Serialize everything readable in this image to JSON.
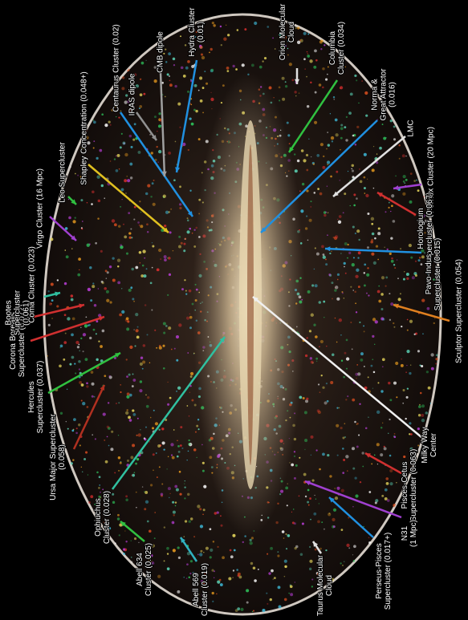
{
  "labels": [
    {
      "lines": [
        "Corona Borealis",
        "Supercluster (0.072)"
      ]
    },
    {
      "lines": [
        "Bootes",
        "Supercluster",
        "(0.061)"
      ]
    },
    {
      "lines": [
        "Hercules",
        "Supercluster (0.037)"
      ]
    },
    {
      "lines": [
        "Ursa Major Supercluster",
        "(0.058)"
      ]
    },
    {
      "lines": [
        "Coma Cluster (0.023)"
      ]
    },
    {
      "lines": [
        "Virgo Cluster (16 Mpc)"
      ]
    },
    {
      "lines": [
        "Leo Supercluster"
      ]
    },
    {
      "lines": [
        "Shapley Concentration (0.048+)"
      ]
    },
    {
      "lines": [
        "Centaurus Cluster (0.02)"
      ]
    },
    {
      "lines": [
        "IRAS dipole"
      ]
    },
    {
      "lines": [
        "CMB dipole"
      ]
    },
    {
      "lines": [
        "Hydra Cluster",
        "(0.01)"
      ]
    },
    {
      "lines": [
        "Orion Molecular",
        "Cloud"
      ]
    },
    {
      "lines": [
        "Columbia",
        "Cluster (0.034)"
      ]
    },
    {
      "lines": [
        "Norma &",
        "Great Attractor",
        "(0.016)"
      ]
    },
    {
      "lines": [
        "LMC"
      ]
    },
    {
      "lines": [
        "Fornax Cluster (20 Mpc)"
      ]
    },
    {
      "lines": [
        "Horologium",
        "Supercluster (0.067)"
      ]
    },
    {
      "lines": [
        "Pavo-Indus",
        "Supercluster (0.015)"
      ]
    },
    {
      "lines": [
        "Sculptor Supercluster (0.054)"
      ]
    },
    {
      "lines": [
        "Milky Way",
        "Center"
      ]
    },
    {
      "lines": [
        "Pisces-Cetus",
        "Supercluster (0.063)"
      ]
    },
    {
      "lines": [
        "N31",
        "(1 Mpc)"
      ]
    },
    {
      "lines": [
        "Perseus-Pisces",
        "Supercluster (0.017+)"
      ]
    },
    {
      "lines": [
        "Taurus Molecular",
        "Cloud"
      ]
    },
    {
      "lines": [
        "Abell 569",
        "Cluster (0.019)"
      ]
    },
    {
      "lines": [
        "Abell 634",
        "Cluster (0.025)"
      ]
    },
    {
      "lines": [
        "Ophiuchus",
        "Cluster (0.028)"
      ]
    }
  ]
}
